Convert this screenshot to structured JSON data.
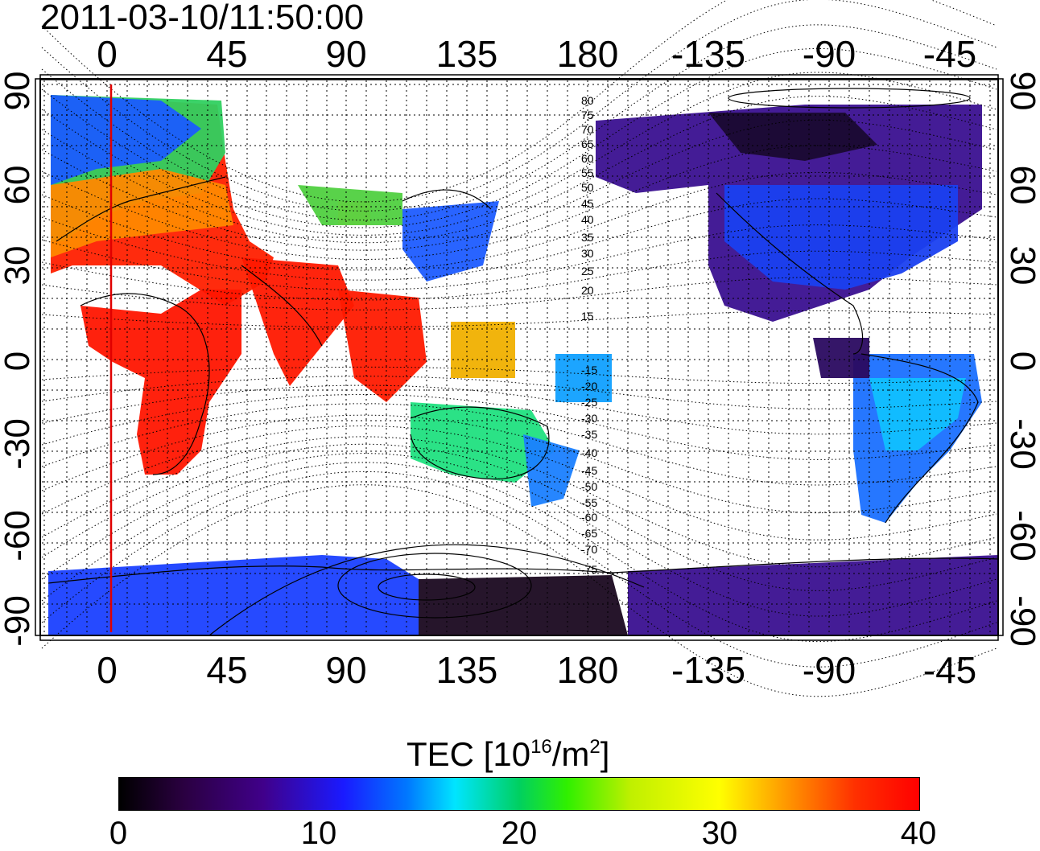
{
  "title": "2011-03-10/11:50:00",
  "lon_ticks": [
    "0",
    "45",
    "90",
    "135",
    "180",
    "-135",
    "-90",
    "-45"
  ],
  "lat_ticks": [
    "90",
    "60",
    "30",
    "0",
    "-30",
    "-60",
    "-90"
  ],
  "contour_labels": [
    "80",
    "75",
    "70",
    "65",
    "60",
    "55",
    "50",
    "45",
    "40",
    "35",
    "30",
    "25",
    "20",
    "15",
    "-15",
    "-20",
    "-25",
    "-30",
    "-35",
    "-40",
    "-45",
    "-50",
    "-55",
    "-60",
    "-65",
    "-70",
    "-75"
  ],
  "colorbar": {
    "title_main": "TEC  [10",
    "title_sup1": "16",
    "title_mid": "/m",
    "title_sup2": "2",
    "title_end": "]",
    "ticks": [
      "0",
      "10",
      "20",
      "30",
      "40"
    ],
    "range": [
      0,
      40
    ]
  },
  "colors": {
    "low": "#000000",
    "mid": "#00e5ff",
    "high": "#ff0000",
    "meridian_marker": "#e00000"
  }
}
